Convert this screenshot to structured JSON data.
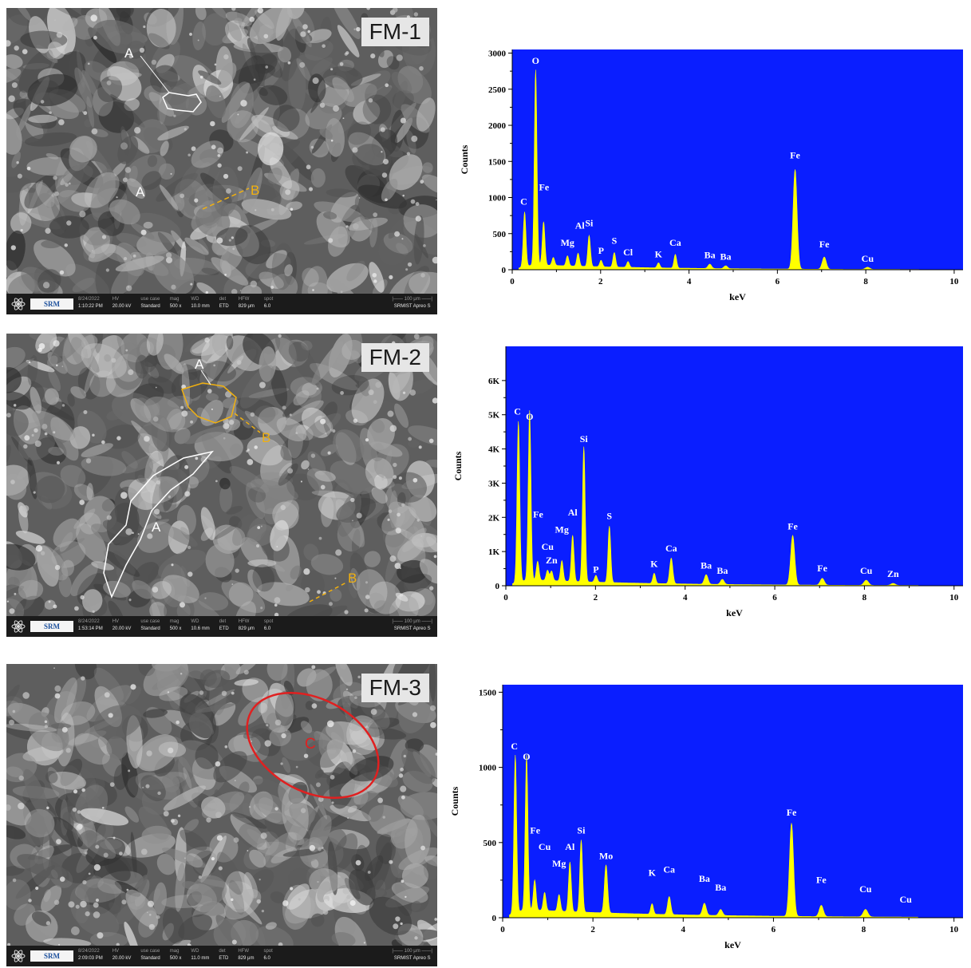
{
  "panels": [
    {
      "sem": {
        "label": "FM-1",
        "markers": [
          "A",
          "A",
          "B"
        ],
        "info": {
          "logo_text": "SRM",
          "fields": [
            {
              "k": "8/24/2022",
              "v": "1:10:22 PM"
            },
            {
              "k": "HV",
              "v": "20.00 kV"
            },
            {
              "k": "use case",
              "v": "Standard"
            },
            {
              "k": "mag",
              "v": "500 x"
            },
            {
              "k": "WD",
              "v": "10.0 mm"
            },
            {
              "k": "det",
              "v": "ETD"
            },
            {
              "k": "HFW",
              "v": "829 μm"
            },
            {
              "k": "spot",
              "v": "6.0"
            }
          ],
          "scale": "100 μm",
          "inst": "SRMIST Apreo S"
        }
      },
      "chart_data": {
        "type": "line",
        "xlabel": "keV",
        "ylabel": "Counts",
        "xlim": [
          0,
          10.2
        ],
        "ylim": [
          0,
          3050
        ],
        "xticks": [
          0,
          2,
          4,
          6,
          8,
          10
        ],
        "xtick_labels": [
          "0",
          "2",
          "4",
          "6",
          "8",
          "10"
        ],
        "yticks": [
          0,
          500,
          1000,
          1500,
          2000,
          2500,
          3000
        ],
        "ytick_labels": [
          "0",
          "500",
          "1000",
          "1500",
          "2000",
          "2500",
          "3000"
        ],
        "background": "#0a1eff",
        "fill": "#ffff00",
        "peaks": [
          {
            "x": 0.28,
            "y": 760,
            "w": 0.03
          },
          {
            "x": 0.53,
            "y": 2700,
            "w": 0.03
          },
          {
            "x": 0.71,
            "y": 600,
            "w": 0.03
          },
          {
            "x": 0.93,
            "y": 110,
            "w": 0.03
          },
          {
            "x": 1.25,
            "y": 140,
            "w": 0.03
          },
          {
            "x": 1.49,
            "y": 180,
            "w": 0.03
          },
          {
            "x": 1.74,
            "y": 430,
            "w": 0.03
          },
          {
            "x": 2.01,
            "y": 90,
            "w": 0.03
          },
          {
            "x": 2.31,
            "y": 200,
            "w": 0.03
          },
          {
            "x": 2.62,
            "y": 80,
            "w": 0.03
          },
          {
            "x": 3.31,
            "y": 70,
            "w": 0.03
          },
          {
            "x": 3.69,
            "y": 190,
            "w": 0.03
          },
          {
            "x": 4.47,
            "y": 60,
            "w": 0.04
          },
          {
            "x": 4.83,
            "y": 40,
            "w": 0.04
          },
          {
            "x": 6.4,
            "y": 1380,
            "w": 0.045
          },
          {
            "x": 7.06,
            "y": 170,
            "w": 0.045
          },
          {
            "x": 8.04,
            "y": 30,
            "w": 0.05
          }
        ],
        "background_counts": {
          "max": 70,
          "decay": 0.35
        },
        "annotations": [
          {
            "text": "O",
            "x": 0.53,
            "y": 2850
          },
          {
            "text": "C",
            "x": 0.26,
            "y": 900
          },
          {
            "text": "Fe",
            "x": 0.72,
            "y": 1100
          },
          {
            "text": "Mg",
            "x": 1.25,
            "y": 330
          },
          {
            "text": "Al",
            "x": 1.53,
            "y": 570
          },
          {
            "text": "Si",
            "x": 1.74,
            "y": 600
          },
          {
            "text": "P",
            "x": 2.01,
            "y": 220
          },
          {
            "text": "S",
            "x": 2.31,
            "y": 360
          },
          {
            "text": "Cl",
            "x": 2.62,
            "y": 200
          },
          {
            "text": "K",
            "x": 3.31,
            "y": 170
          },
          {
            "text": "Ca",
            "x": 3.69,
            "y": 330
          },
          {
            "text": "Ba",
            "x": 4.47,
            "y": 160
          },
          {
            "text": "Ba",
            "x": 4.83,
            "y": 140
          },
          {
            "text": "Fe",
            "x": 6.4,
            "y": 1540
          },
          {
            "text": "Fe",
            "x": 7.06,
            "y": 310
          },
          {
            "text": "Cu",
            "x": 8.04,
            "y": 110
          }
        ]
      }
    },
    {
      "sem": {
        "label": "FM-2",
        "markers": [
          "A",
          "A",
          "B",
          "B"
        ],
        "info": {
          "logo_text": "SRM",
          "fields": [
            {
              "k": "8/24/2022",
              "v": "1:53:14 PM"
            },
            {
              "k": "HV",
              "v": "20.00 kV"
            },
            {
              "k": "use case",
              "v": "Standard"
            },
            {
              "k": "mag",
              "v": "500 x"
            },
            {
              "k": "WD",
              "v": "10.6 mm"
            },
            {
              "k": "det",
              "v": "ETD"
            },
            {
              "k": "HFW",
              "v": "829 μm"
            },
            {
              "k": "spot",
              "v": "6.0"
            }
          ],
          "scale": "100 μm",
          "inst": "SRMIST Apreo S"
        }
      },
      "chart_data": {
        "type": "line",
        "xlabel": "keV",
        "ylabel": "Counts",
        "xlim": [
          0,
          10.2
        ],
        "ylim": [
          0,
          7000
        ],
        "xticks": [
          0,
          2,
          4,
          6,
          8,
          10
        ],
        "xtick_labels": [
          "0",
          "2",
          "4",
          "6",
          "8",
          "10"
        ],
        "yticks": [
          0,
          1000,
          2000,
          3000,
          4000,
          5000,
          6000
        ],
        "ytick_labels": [
          "0",
          "1K",
          "2K",
          "3K",
          "4K",
          "5K",
          "6K"
        ],
        "background": "#0a1eff",
        "fill": "#ffff00",
        "peaks": [
          {
            "x": 0.28,
            "y": 4700,
            "w": 0.03
          },
          {
            "x": 0.53,
            "y": 4950,
            "w": 0.03
          },
          {
            "x": 0.71,
            "y": 550,
            "w": 0.03
          },
          {
            "x": 0.93,
            "y": 300,
            "w": 0.03
          },
          {
            "x": 1.02,
            "y": 280,
            "w": 0.03
          },
          {
            "x": 1.25,
            "y": 600,
            "w": 0.03
          },
          {
            "x": 1.49,
            "y": 1350,
            "w": 0.03
          },
          {
            "x": 1.74,
            "y": 3950,
            "w": 0.03
          },
          {
            "x": 2.01,
            "y": 200,
            "w": 0.03
          },
          {
            "x": 2.31,
            "y": 1650,
            "w": 0.03
          },
          {
            "x": 3.31,
            "y": 300,
            "w": 0.03
          },
          {
            "x": 3.69,
            "y": 750,
            "w": 0.035
          },
          {
            "x": 4.47,
            "y": 280,
            "w": 0.04
          },
          {
            "x": 4.83,
            "y": 150,
            "w": 0.04
          },
          {
            "x": 6.4,
            "y": 1450,
            "w": 0.045
          },
          {
            "x": 7.06,
            "y": 200,
            "w": 0.045
          },
          {
            "x": 8.04,
            "y": 150,
            "w": 0.05
          },
          {
            "x": 8.64,
            "y": 60,
            "w": 0.05
          }
        ],
        "background_counts": {
          "max": 180,
          "decay": 0.35
        },
        "annotations": [
          {
            "text": "C",
            "x": 0.26,
            "y": 5000
          },
          {
            "text": "O",
            "x": 0.53,
            "y": 4850
          },
          {
            "text": "Fe",
            "x": 0.72,
            "y": 2000
          },
          {
            "text": "Cu",
            "x": 0.93,
            "y": 1050
          },
          {
            "text": "Zn",
            "x": 1.02,
            "y": 650
          },
          {
            "text": "Mg",
            "x": 1.25,
            "y": 1550
          },
          {
            "text": "Al",
            "x": 1.49,
            "y": 2050
          },
          {
            "text": "Si",
            "x": 1.74,
            "y": 4200
          },
          {
            "text": "P",
            "x": 2.01,
            "y": 380
          },
          {
            "text": "S",
            "x": 2.31,
            "y": 1950
          },
          {
            "text": "K",
            "x": 3.31,
            "y": 550
          },
          {
            "text": "Ca",
            "x": 3.69,
            "y": 1000
          },
          {
            "text": "Ba",
            "x": 4.47,
            "y": 500
          },
          {
            "text": "Ba",
            "x": 4.83,
            "y": 350
          },
          {
            "text": "Fe",
            "x": 6.4,
            "y": 1650
          },
          {
            "text": "Fe",
            "x": 7.06,
            "y": 420
          },
          {
            "text": "Cu",
            "x": 8.04,
            "y": 350
          },
          {
            "text": "Zn",
            "x": 8.64,
            "y": 260
          }
        ]
      }
    },
    {
      "sem": {
        "label": "FM-3",
        "markers": [
          "C"
        ],
        "info": {
          "logo_text": "SRM",
          "fields": [
            {
              "k": "8/24/2022",
              "v": "2:09:03 PM"
            },
            {
              "k": "HV",
              "v": "20.00 kV"
            },
            {
              "k": "use case",
              "v": "Standard"
            },
            {
              "k": "mag",
              "v": "500 x"
            },
            {
              "k": "WD",
              "v": "11.0 mm"
            },
            {
              "k": "det",
              "v": "ETD"
            },
            {
              "k": "HFW",
              "v": "829 μm"
            },
            {
              "k": "spot",
              "v": "6.0"
            }
          ],
          "scale": "100 μm",
          "inst": "SRMIST Apreo S"
        }
      },
      "chart_data": {
        "type": "line",
        "xlabel": "keV",
        "ylabel": "Counts",
        "xlim": [
          0,
          10.2
        ],
        "ylim": [
          0,
          1550
        ],
        "xticks": [
          0,
          2,
          4,
          6,
          8,
          10
        ],
        "xtick_labels": [
          "0",
          "2",
          "4",
          "6",
          "8",
          "10"
        ],
        "yticks": [
          0,
          500,
          1000,
          1500
        ],
        "ytick_labels": [
          "0",
          "500",
          "1000",
          "1500"
        ],
        "background": "#0a1eff",
        "fill": "#ffff00",
        "peaks": [
          {
            "x": 0.28,
            "y": 1050,
            "w": 0.03
          },
          {
            "x": 0.53,
            "y": 1030,
            "w": 0.03
          },
          {
            "x": 0.71,
            "y": 200,
            "w": 0.03
          },
          {
            "x": 0.93,
            "y": 120,
            "w": 0.03
          },
          {
            "x": 1.25,
            "y": 110,
            "w": 0.03
          },
          {
            "x": 1.49,
            "y": 330,
            "w": 0.03
          },
          {
            "x": 1.74,
            "y": 480,
            "w": 0.03
          },
          {
            "x": 2.29,
            "y": 320,
            "w": 0.035
          },
          {
            "x": 3.31,
            "y": 70,
            "w": 0.03
          },
          {
            "x": 3.69,
            "y": 120,
            "w": 0.035
          },
          {
            "x": 4.47,
            "y": 80,
            "w": 0.04
          },
          {
            "x": 4.83,
            "y": 40,
            "w": 0.04
          },
          {
            "x": 6.4,
            "y": 620,
            "w": 0.045
          },
          {
            "x": 7.06,
            "y": 75,
            "w": 0.045
          },
          {
            "x": 8.04,
            "y": 50,
            "w": 0.05
          }
        ],
        "background_counts": {
          "max": 55,
          "decay": 0.3
        },
        "annotations": [
          {
            "text": "C",
            "x": 0.26,
            "y": 1120
          },
          {
            "text": "O",
            "x": 0.53,
            "y": 1050
          },
          {
            "text": "Fe",
            "x": 0.72,
            "y": 560
          },
          {
            "text": "Cu",
            "x": 0.93,
            "y": 450
          },
          {
            "text": "Mg",
            "x": 1.25,
            "y": 340
          },
          {
            "text": "Al",
            "x": 1.49,
            "y": 450
          },
          {
            "text": "Si",
            "x": 1.74,
            "y": 560
          },
          {
            "text": "Mo",
            "x": 2.29,
            "y": 390
          },
          {
            "text": "K",
            "x": 3.31,
            "y": 280
          },
          {
            "text": "Ca",
            "x": 3.69,
            "y": 300
          },
          {
            "text": "Ba",
            "x": 4.47,
            "y": 240
          },
          {
            "text": "Ba",
            "x": 4.83,
            "y": 180
          },
          {
            "text": "Fe",
            "x": 6.4,
            "y": 680
          },
          {
            "text": "Fe",
            "x": 7.06,
            "y": 230
          },
          {
            "text": "Cu",
            "x": 8.04,
            "y": 170
          },
          {
            "text": "Cu",
            "x": 8.93,
            "y": 100
          }
        ]
      }
    }
  ]
}
